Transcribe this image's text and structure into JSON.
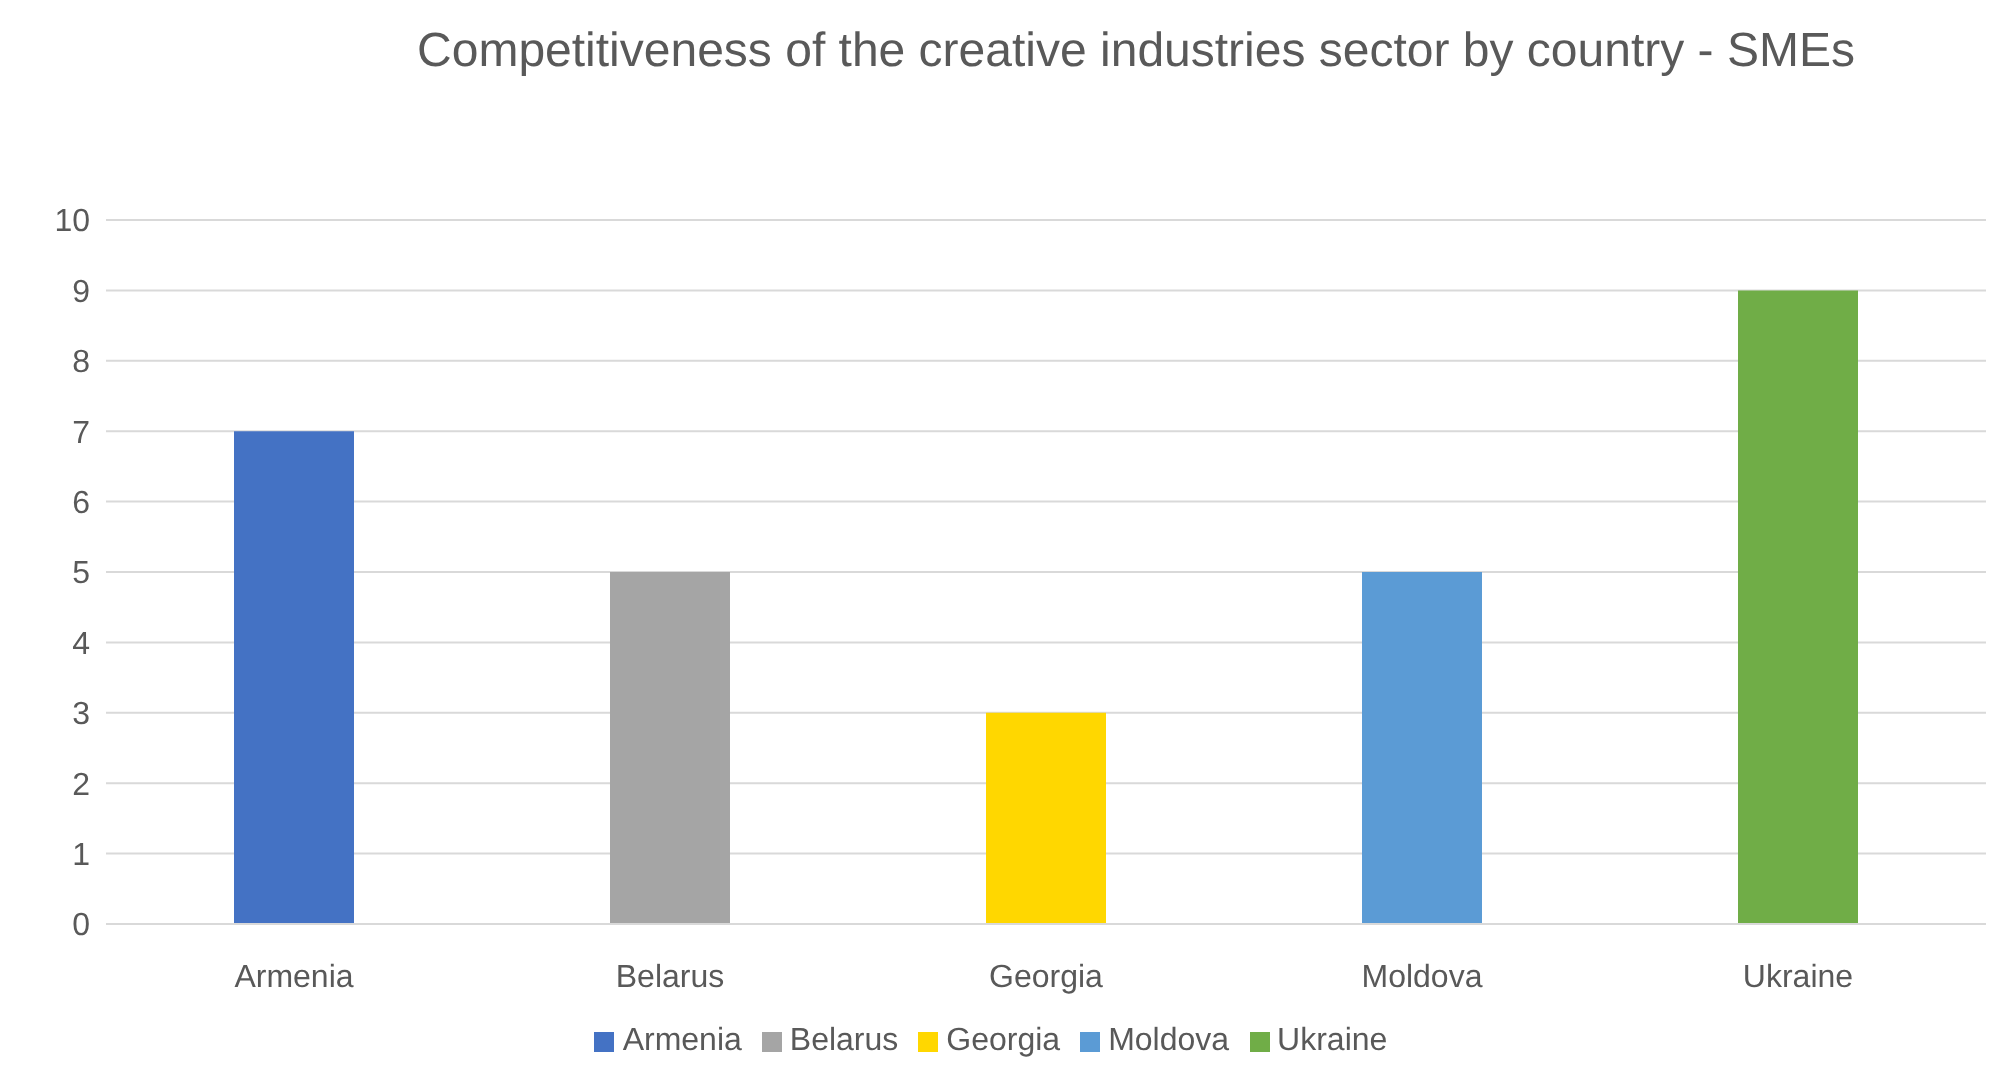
{
  "chart_data": {
    "type": "bar",
    "title": "Competitiveness of the creative industries sector by country - SMEs",
    "categories": [
      "Armenia",
      "Belarus",
      "Georgia",
      "Moldova",
      "Ukraine"
    ],
    "series": [
      {
        "name": "Armenia",
        "color": "#4472c4",
        "values": [
          7,
          null,
          null,
          null,
          null
        ]
      },
      {
        "name": "Belarus",
        "color": "#a5a5a5",
        "values": [
          null,
          5,
          null,
          null,
          null
        ]
      },
      {
        "name": "Georgia",
        "color": "#ffd700",
        "values": [
          null,
          null,
          3,
          null,
          null
        ]
      },
      {
        "name": "Moldova",
        "color": "#5b9bd5",
        "values": [
          null,
          null,
          null,
          5,
          null
        ]
      },
      {
        "name": "Ukraine",
        "color": "#70ad47",
        "values": [
          null,
          null,
          null,
          null,
          9
        ]
      }
    ],
    "stacked": true,
    "ylim": [
      0,
      10
    ],
    "yticks": [
      0,
      1,
      2,
      3,
      4,
      5,
      6,
      7,
      8,
      9,
      10
    ],
    "grid": "y",
    "legend": "bottom"
  }
}
